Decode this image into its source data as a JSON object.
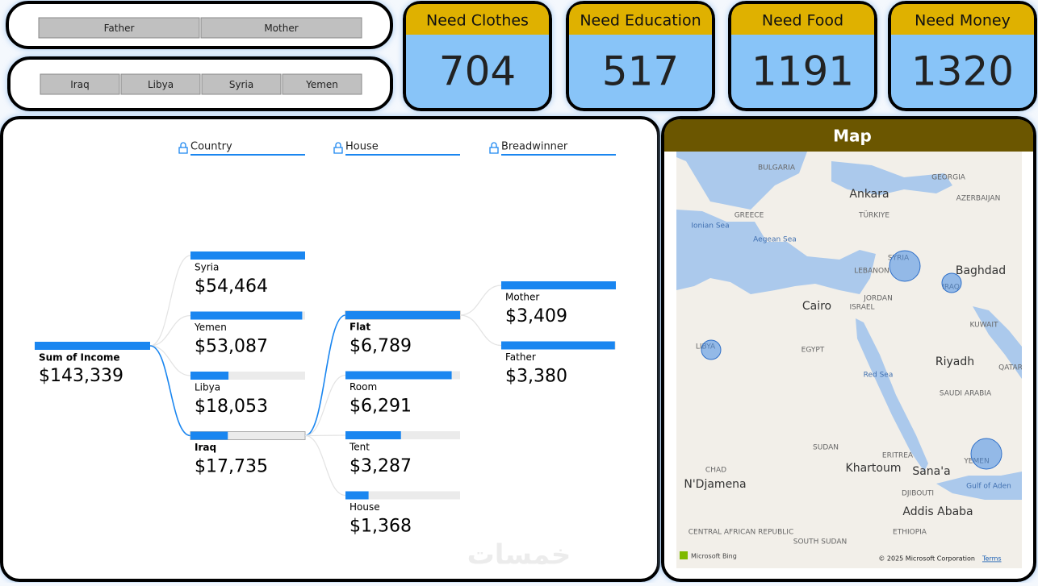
{
  "slicers": {
    "breadwinner": [
      "Father",
      "Mother"
    ],
    "country": [
      "Iraq",
      "Libya",
      "Syria",
      "Yemen"
    ]
  },
  "cards": [
    {
      "title": "Need Clothes",
      "value": 704
    },
    {
      "title": "Need Education",
      "value": 517
    },
    {
      "title": "Need Food",
      "value": 1191
    },
    {
      "title": "Need Money",
      "value": 1320
    }
  ],
  "tree": {
    "root": {
      "label": "Sum of Income",
      "value": 143339,
      "value_label": "$143,339"
    },
    "levels": [
      {
        "header": "Country",
        "items": [
          "Syria",
          "Yemen",
          "Libya",
          "Iraq"
        ],
        "values": [
          54464,
          53087,
          18053,
          17735
        ],
        "value_labels": [
          "$54,464",
          "$53,087",
          "$18,053",
          "$17,735"
        ],
        "expanded": 3
      },
      {
        "header": "House",
        "items": [
          "Flat",
          "Room",
          "Tent",
          "House"
        ],
        "values": [
          6789,
          6291,
          3287,
          1368
        ],
        "value_labels": [
          "$6,789",
          "$6,291",
          "$3,287",
          "$1,368"
        ],
        "expanded": 0
      },
      {
        "header": "Breadwinner",
        "items": [
          "Mother",
          "Father"
        ],
        "values": [
          3409,
          3380
        ],
        "value_labels": [
          "$3,409",
          "$3,380"
        ],
        "expanded": null
      }
    ]
  },
  "watermark": "خمسات",
  "map": {
    "title": "Map",
    "labels": [
      "BULGARIA",
      "GEORGIA",
      "Ankara",
      "AZERBAIJAN",
      "GREECE",
      "TÜRKIYE",
      "Ionian Sea",
      "Aegean Sea",
      "SYRIA",
      "LEBANON",
      "Baghdad",
      "IRAQ",
      "JORDAN",
      "Cairo",
      "ISRAEL",
      "KUWAIT",
      "LIBYA",
      "EGYPT",
      "Riyadh",
      "QATAR",
      "Red Sea",
      "SAUDI ARABIA",
      "SUDAN",
      "ERITREA",
      "YEMEN",
      "Khartoum",
      "Sana'a",
      "CHAD",
      "N'Djamena",
      "Gulf of Aden",
      "DJIBOUTI",
      "Addis Ababa",
      "ETHIOPIA",
      "CENTRAL AFRICAN REPUBLIC",
      "SOUTH SUDAN"
    ],
    "logo": "Microsoft Bing",
    "attribution": "© 2025 Microsoft Corporation",
    "terms": "Terms"
  }
}
